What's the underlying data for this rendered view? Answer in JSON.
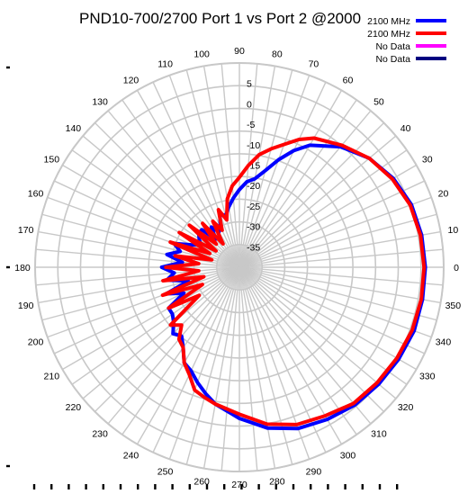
{
  "chart_data": {
    "type": "polar-line",
    "title": "PND10-700/2700 Port 1 vs Port 2 @2000",
    "angle_ticks": [
      0,
      10,
      20,
      30,
      40,
      50,
      60,
      70,
      80,
      90,
      100,
      110,
      120,
      130,
      140,
      150,
      160,
      170,
      180,
      190,
      200,
      210,
      220,
      230,
      240,
      250,
      260,
      270,
      280,
      290,
      300,
      310,
      320,
      330,
      340,
      350
    ],
    "radial_ticks": [
      -35,
      -30,
      -25,
      -20,
      -15,
      -10,
      -5,
      0,
      5
    ],
    "rlim": [
      -40,
      10
    ],
    "grid": true,
    "legend_position": "top-right",
    "series": [
      {
        "name": "2100 MHz",
        "color": "#0000ff",
        "points": [
          [
            0,
            5.5
          ],
          [
            10,
            5.3
          ],
          [
            20,
            4.8
          ],
          [
            30,
            3.5
          ],
          [
            40,
            1.5
          ],
          [
            50,
            -1.5
          ],
          [
            60,
            -5.5
          ],
          [
            65,
            -8.5
          ],
          [
            70,
            -12
          ],
          [
            75,
            -15.5
          ],
          [
            80,
            -18
          ],
          [
            85,
            -19
          ],
          [
            90,
            -21
          ],
          [
            95,
            -23
          ],
          [
            100,
            -25
          ],
          [
            105,
            -27
          ],
          [
            110,
            -26
          ],
          [
            115,
            -29
          ],
          [
            120,
            -30
          ],
          [
            125,
            -28
          ],
          [
            130,
            -31
          ],
          [
            135,
            -27
          ],
          [
            140,
            -27
          ],
          [
            145,
            -28
          ],
          [
            150,
            -29
          ],
          [
            155,
            -27
          ],
          [
            160,
            -23
          ],
          [
            165,
            -25
          ],
          [
            170,
            -22
          ],
          [
            175,
            -26
          ],
          [
            180,
            -21
          ],
          [
            185,
            -24
          ],
          [
            190,
            -22
          ],
          [
            195,
            -27
          ],
          [
            200,
            -21
          ],
          [
            205,
            -25
          ],
          [
            210,
            -20
          ],
          [
            215,
            -20
          ],
          [
            220,
            -19
          ],
          [
            225,
            -17
          ],
          [
            230,
            -18
          ],
          [
            235,
            -16
          ],
          [
            240,
            -13
          ],
          [
            245,
            -12
          ],
          [
            250,
            -10
          ],
          [
            255,
            -8
          ],
          [
            260,
            -6
          ],
          [
            270,
            -3
          ],
          [
            280,
            0
          ],
          [
            290,
            2
          ],
          [
            300,
            3
          ],
          [
            310,
            4
          ],
          [
            320,
            4.5
          ],
          [
            330,
            5
          ],
          [
            340,
            5.5
          ],
          [
            350,
            5.5
          ],
          [
            360,
            5.5
          ]
        ]
      },
      {
        "name": "2100 MHz",
        "color": "#ff0000",
        "points": [
          [
            0,
            5.2
          ],
          [
            10,
            5
          ],
          [
            20,
            4.5
          ],
          [
            30,
            3.2
          ],
          [
            40,
            1.5
          ],
          [
            50,
            -1
          ],
          [
            60,
            -3.5
          ],
          [
            65,
            -5.5
          ],
          [
            70,
            -8
          ],
          [
            75,
            -10
          ],
          [
            80,
            -12
          ],
          [
            85,
            -15
          ],
          [
            90,
            -18
          ],
          [
            95,
            -20
          ],
          [
            100,
            -23
          ],
          [
            105,
            -28
          ],
          [
            110,
            -25
          ],
          [
            115,
            -30
          ],
          [
            120,
            -27
          ],
          [
            125,
            -33
          ],
          [
            130,
            -26
          ],
          [
            135,
            -32
          ],
          [
            140,
            -24
          ],
          [
            145,
            -33
          ],
          [
            150,
            -23
          ],
          [
            155,
            -32
          ],
          [
            160,
            -22
          ],
          [
            165,
            -33
          ],
          [
            170,
            -24
          ],
          [
            175,
            -30
          ],
          [
            180,
            -22
          ],
          [
            185,
            -30
          ],
          [
            190,
            -21
          ],
          [
            195,
            -31
          ],
          [
            200,
            -20
          ],
          [
            205,
            -30
          ],
          [
            210,
            -20
          ],
          [
            215,
            -28
          ],
          [
            220,
            -18
          ],
          [
            225,
            -20
          ],
          [
            230,
            -17
          ],
          [
            235,
            -16
          ],
          [
            240,
            -13
          ],
          [
            245,
            -11
          ],
          [
            250,
            -8
          ],
          [
            255,
            -7
          ],
          [
            260,
            -6
          ],
          [
            270,
            -4
          ],
          [
            280,
            -1
          ],
          [
            290,
            1
          ],
          [
            300,
            2
          ],
          [
            310,
            3.5
          ],
          [
            320,
            4
          ],
          [
            330,
            4.5
          ],
          [
            340,
            5
          ],
          [
            350,
            5.2
          ],
          [
            360,
            5.2
          ]
        ]
      },
      {
        "name": "No Data",
        "color": "#ff00ff",
        "points": []
      },
      {
        "name": "No Data",
        "color": "#000080",
        "points": []
      }
    ]
  }
}
